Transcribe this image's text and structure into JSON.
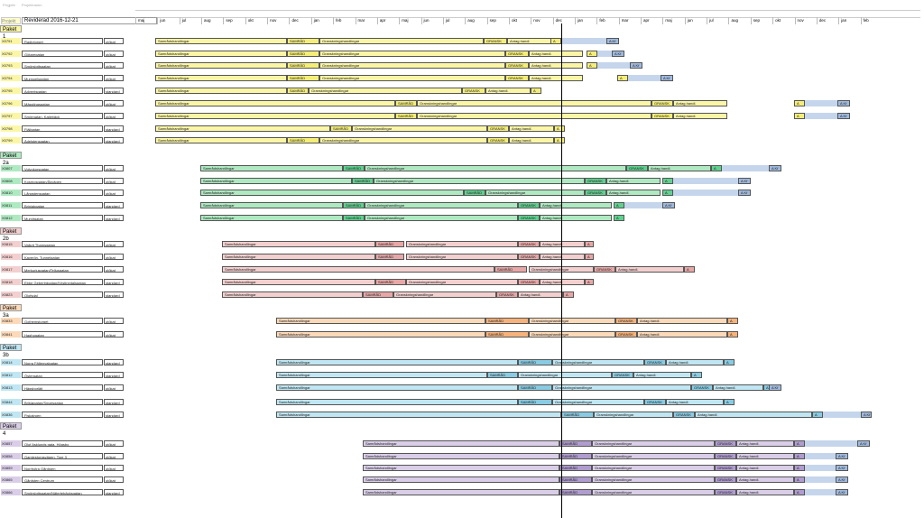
{
  "header": {
    "top_labels": [
      "Prrgjekt",
      "Projektnamn"
    ],
    "project_label": "Projekt",
    "revision": "Reviderad 2016-12-21",
    "months": [
      "maj",
      "jun",
      "jul",
      "aug",
      "sep",
      "okt",
      "nov",
      "dec",
      "jan",
      "feb",
      "mar",
      "apr",
      "maj",
      "jun",
      "jul",
      "aug",
      "sep",
      "okt",
      "nov",
      "dec",
      "jan",
      "feb",
      "mar",
      "apr",
      "maj",
      "jun",
      "jul",
      "aug",
      "sep",
      "okt",
      "nov",
      "dec",
      "jan",
      "feb"
    ]
  },
  "phases": {
    "samrad": "Samrådshandlingar",
    "samrad_short": "SAMRÅD",
    "gransk_doc": "Granskningshandlingar",
    "gransk": "GRANSK",
    "antag": "Antag.handl.",
    "a": "A",
    "akf": "A Kf"
  },
  "colors": {
    "p1": "#fbf6a6",
    "p1b": "#f4ee78",
    "p2a": "#aee9c1",
    "p2ab": "#5fd08e",
    "p2b": "#f3cfcf",
    "p2bb": "#e7a7a7",
    "p3a": "#fcd9b8",
    "p3ab": "#f6b27a",
    "p3b": "#bfe6f2",
    "p3bb": "#88cbe2",
    "p4": "#d9cde8",
    "p4b": "#b09ccf",
    "future": "#9fb9dd"
  },
  "packages": [
    {
      "title": "Paket 1",
      "rows": [
        {
          "id": "X0791",
          "name": "Radiotorget",
          "status": "utökat"
        },
        {
          "id": "X0792",
          "name": "Götaregatan",
          "status": "utökat"
        },
        {
          "id": "X0793",
          "name": "Smörslottsgatan",
          "status": "utökat"
        },
        {
          "id": "X0794",
          "name": "Munspelsgatan",
          "status": "utökat"
        },
        {
          "id": "X0795",
          "name": "Adventsgatan",
          "status": "standard"
        },
        {
          "id": "X0796",
          "name": "Mässtingsgatan",
          "status": "utökat"
        },
        {
          "id": "X0797",
          "name": "Smörgatan, Kallebäck",
          "status": "utökat"
        },
        {
          "id": "X0798",
          "name": "Fjällgatan",
          "status": "standard"
        },
        {
          "id": "X0799",
          "name": "Ädelstensgatan",
          "status": "standard"
        }
      ]
    },
    {
      "title": "Paket 2a",
      "rows": [
        {
          "id": "X0807",
          "name": "Volvokorsgatan",
          "status": "utökat"
        },
        {
          "id": "X0808",
          "name": "Kosmosgatan/Åsvägen",
          "status": "utökat"
        },
        {
          "id": "X0810",
          "name": "Långstensgatan",
          "status": "utökat"
        },
        {
          "id": "X0811",
          "name": "Brinjakgatan",
          "status": "standard"
        },
        {
          "id": "X0812",
          "name": "Mumitgatan",
          "status": "standard"
        }
      ]
    },
    {
      "title": "Paket 2b",
      "rows": [
        {
          "id": "X0815",
          "name": "Valkrit Thamsgatan",
          "status": "utökat"
        },
        {
          "id": "X0816",
          "name": "Kaverön, Tunnelgatan",
          "status": "utökat"
        },
        {
          "id": "X0817",
          "name": "Merkuriusgatan/Tellusgatan",
          "status": "utökat"
        },
        {
          "id": "X0818",
          "name": "Ebbe Geberträgatan/Kristinedalsgatan",
          "status": "standard"
        },
        {
          "id": "X0823",
          "name": "Olofsdal",
          "status": "standard"
        }
      ]
    },
    {
      "title": "Paket 3a",
      "rows": [
        {
          "id": "X0833",
          "name": "Gothemstorget",
          "status": "utökat"
        },
        {
          "id": "X0841",
          "name": "Haghogatan",
          "status": "utökat"
        }
      ]
    },
    {
      "title": "Paket 3b",
      "rows": [
        {
          "id": "X0814",
          "name": "Norra Fältenvalgatan",
          "status": "standard"
        },
        {
          "id": "X0812",
          "name": "Östergatan",
          "status": "standard"
        },
        {
          "id": "X0813",
          "name": "Hägsborläjt",
          "status": "utökat"
        },
        {
          "id": "X0844",
          "name": "Brišjøgatan/Smørsgatan",
          "status": "standard"
        },
        {
          "id": "X0836",
          "name": "Fiskalroen",
          "status": "standard"
        }
      ]
    },
    {
      "title": "Paket 4",
      "rows": [
        {
          "id": "X0857",
          "name": "Olof Asklunds gata, Högsbo",
          "status": "utökat"
        },
        {
          "id": "X0858",
          "name": "Gamlestorgsvägen, Tore 3",
          "status": "utökat"
        },
        {
          "id": "X0859",
          "name": "Norrbotra Gårdsten",
          "status": "utökat"
        },
        {
          "id": "X0865",
          "name": "Gårdsten Centrum",
          "status": "utökat"
        },
        {
          "id": "X0866",
          "name": "Smörslottsgatan/Nätertebäcksgatan",
          "status": "standard"
        }
      ]
    }
  ]
}
